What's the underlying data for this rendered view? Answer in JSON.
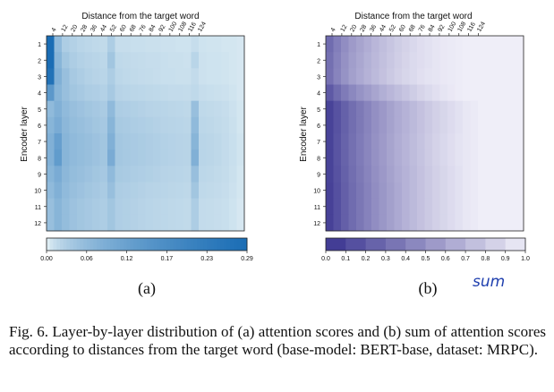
{
  "colors": {
    "blue_low": "#f2fafa",
    "blue_high": "#1a6db5",
    "purple_low": "#efeef8",
    "purple_high": "#3a3490",
    "handwriting": "#1f3fae"
  },
  "panels": {
    "a_label": "(a)",
    "b_label": "(b)",
    "b_annotation": "sum"
  },
  "caption": {
    "text": "Fig. 6.   Layer-by-layer distribution of (a) attention scores and (b) sum of attention scores according to distances from the target word (base-model: BERT-base, dataset: MRPC)."
  },
  "chart_data": [
    {
      "type": "heatmap",
      "title": "Distance from the target word",
      "xlabel": "Distance from the target word",
      "ylabel": "Encoder layer",
      "x_ticks": [
        "4",
        "12",
        "20",
        "28",
        "36",
        "44",
        "52",
        "60",
        "68",
        "76",
        "84",
        "92",
        "100",
        "108",
        "116",
        "124"
      ],
      "y_ticks": [
        "1",
        "2",
        "3",
        "4",
        "5",
        "6",
        "7",
        "8",
        "9",
        "10",
        "11",
        "12"
      ],
      "colorbar": {
        "ticks": [
          "0.00",
          "0.06",
          "0.12",
          "0.17",
          "0.23",
          "0.29"
        ],
        "range": [
          0,
          0.29
        ]
      },
      "values_approx": [
        [
          0.29,
          0.06,
          0.03,
          0.025,
          0.02,
          0.018,
          0.016,
          0.015,
          0.03,
          0.012,
          0.012,
          0.011,
          0.011,
          0.01,
          0.01,
          0.009,
          0.009,
          0.008,
          0.008,
          0.012,
          0.008,
          0.007,
          0.007,
          0.006,
          0.006,
          0.005
        ],
        [
          0.29,
          0.07,
          0.04,
          0.03,
          0.025,
          0.022,
          0.02,
          0.018,
          0.04,
          0.016,
          0.015,
          0.014,
          0.013,
          0.012,
          0.012,
          0.011,
          0.01,
          0.01,
          0.009,
          0.02,
          0.009,
          0.008,
          0.008,
          0.007,
          0.006,
          0.005
        ],
        [
          0.27,
          0.08,
          0.05,
          0.035,
          0.03,
          0.025,
          0.022,
          0.02,
          0.03,
          0.018,
          0.016,
          0.015,
          0.014,
          0.013,
          0.012,
          0.011,
          0.011,
          0.01,
          0.01,
          0.014,
          0.009,
          0.008,
          0.008,
          0.007,
          0.006,
          0.005
        ],
        [
          0.14,
          0.07,
          0.05,
          0.04,
          0.035,
          0.03,
          0.028,
          0.025,
          0.035,
          0.022,
          0.02,
          0.019,
          0.018,
          0.017,
          0.016,
          0.015,
          0.014,
          0.014,
          0.013,
          0.016,
          0.012,
          0.011,
          0.01,
          0.009,
          0.007,
          0.005
        ],
        [
          0.06,
          0.08,
          0.06,
          0.05,
          0.045,
          0.04,
          0.036,
          0.032,
          0.06,
          0.03,
          0.028,
          0.026,
          0.024,
          0.022,
          0.021,
          0.02,
          0.019,
          0.018,
          0.017,
          0.05,
          0.016,
          0.015,
          0.014,
          0.012,
          0.009,
          0.006
        ],
        [
          0.07,
          0.09,
          0.065,
          0.055,
          0.05,
          0.045,
          0.04,
          0.036,
          0.07,
          0.034,
          0.032,
          0.03,
          0.028,
          0.026,
          0.024,
          0.022,
          0.021,
          0.02,
          0.019,
          0.06,
          0.018,
          0.017,
          0.015,
          0.013,
          0.01,
          0.006
        ],
        [
          0.08,
          0.12,
          0.07,
          0.06,
          0.055,
          0.05,
          0.045,
          0.04,
          0.08,
          0.038,
          0.035,
          0.033,
          0.031,
          0.029,
          0.027,
          0.025,
          0.023,
          0.022,
          0.021,
          0.07,
          0.02,
          0.019,
          0.017,
          0.014,
          0.011,
          0.007
        ],
        [
          0.08,
          0.13,
          0.07,
          0.06,
          0.055,
          0.05,
          0.045,
          0.04,
          0.09,
          0.038,
          0.035,
          0.033,
          0.031,
          0.029,
          0.027,
          0.025,
          0.023,
          0.022,
          0.021,
          0.08,
          0.02,
          0.019,
          0.017,
          0.014,
          0.011,
          0.007
        ],
        [
          0.07,
          0.09,
          0.065,
          0.055,
          0.05,
          0.045,
          0.04,
          0.036,
          0.06,
          0.034,
          0.032,
          0.03,
          0.028,
          0.026,
          0.024,
          0.022,
          0.021,
          0.02,
          0.019,
          0.05,
          0.018,
          0.017,
          0.015,
          0.013,
          0.01,
          0.006
        ],
        [
          0.06,
          0.08,
          0.06,
          0.05,
          0.045,
          0.04,
          0.036,
          0.032,
          0.05,
          0.03,
          0.028,
          0.026,
          0.024,
          0.022,
          0.021,
          0.02,
          0.019,
          0.018,
          0.017,
          0.04,
          0.016,
          0.015,
          0.014,
          0.012,
          0.009,
          0.006
        ],
        [
          0.05,
          0.07,
          0.055,
          0.045,
          0.04,
          0.036,
          0.032,
          0.03,
          0.04,
          0.028,
          0.026,
          0.024,
          0.022,
          0.02,
          0.019,
          0.018,
          0.017,
          0.016,
          0.015,
          0.03,
          0.014,
          0.013,
          0.012,
          0.011,
          0.008,
          0.005
        ],
        [
          0.05,
          0.07,
          0.055,
          0.045,
          0.04,
          0.036,
          0.032,
          0.03,
          0.04,
          0.028,
          0.026,
          0.024,
          0.022,
          0.02,
          0.019,
          0.018,
          0.017,
          0.016,
          0.015,
          0.03,
          0.014,
          0.013,
          0.012,
          0.011,
          0.008,
          0.005
        ]
      ]
    },
    {
      "type": "heatmap",
      "title": "Distance from the target word",
      "xlabel": "Distance from the target word",
      "ylabel": "Encoder layer",
      "x_ticks": [
        "4",
        "12",
        "20",
        "28",
        "36",
        "44",
        "52",
        "60",
        "68",
        "76",
        "84",
        "92",
        "100",
        "108",
        "116",
        "124"
      ],
      "y_ticks": [
        "1",
        "2",
        "3",
        "4",
        "5",
        "6",
        "7",
        "8",
        "9",
        "10",
        "11",
        "12"
      ],
      "colorbar": {
        "ticks": [
          "0.0",
          "0.1",
          "0.2",
          "0.3",
          "0.4",
          "0.5",
          "0.6",
          "0.7",
          "0.8",
          "0.9",
          "1.0"
        ],
        "range": [
          0,
          1
        ]
      },
      "values_approx": [
        [
          0.3,
          0.4,
          0.48,
          0.55,
          0.6,
          0.65,
          0.7,
          0.74,
          0.78,
          0.82,
          0.85,
          0.88,
          0.91,
          0.93,
          0.95,
          0.97,
          0.98,
          0.99,
          1.0,
          1.0,
          1.0,
          1.0,
          1.0,
          1.0,
          1.0,
          1.0
        ],
        [
          0.32,
          0.42,
          0.5,
          0.57,
          0.62,
          0.67,
          0.71,
          0.75,
          0.79,
          0.83,
          0.86,
          0.89,
          0.91,
          0.93,
          0.95,
          0.97,
          0.98,
          0.99,
          1.0,
          1.0,
          1.0,
          1.0,
          1.0,
          1.0,
          1.0,
          1.0
        ],
        [
          0.33,
          0.43,
          0.51,
          0.58,
          0.63,
          0.68,
          0.72,
          0.76,
          0.8,
          0.84,
          0.87,
          0.89,
          0.92,
          0.94,
          0.95,
          0.97,
          0.98,
          0.99,
          1.0,
          1.0,
          1.0,
          1.0,
          1.0,
          1.0,
          1.0,
          1.0
        ],
        [
          0.2,
          0.3,
          0.38,
          0.45,
          0.51,
          0.56,
          0.61,
          0.66,
          0.7,
          0.74,
          0.78,
          0.82,
          0.86,
          0.89,
          0.92,
          0.95,
          0.97,
          0.99,
          1.0,
          1.0,
          1.0,
          1.0,
          1.0,
          1.0,
          1.0,
          1.0
        ],
        [
          0.08,
          0.16,
          0.24,
          0.31,
          0.37,
          0.43,
          0.49,
          0.54,
          0.59,
          0.64,
          0.68,
          0.72,
          0.76,
          0.8,
          0.84,
          0.87,
          0.9,
          0.93,
          0.96,
          0.98,
          1.0,
          1.0,
          1.0,
          1.0,
          1.0,
          1.0
        ],
        [
          0.08,
          0.16,
          0.24,
          0.31,
          0.37,
          0.43,
          0.49,
          0.54,
          0.59,
          0.64,
          0.68,
          0.72,
          0.76,
          0.8,
          0.84,
          0.87,
          0.9,
          0.93,
          0.96,
          0.98,
          1.0,
          1.0,
          1.0,
          1.0,
          1.0,
          1.0
        ],
        [
          0.08,
          0.17,
          0.25,
          0.32,
          0.38,
          0.44,
          0.5,
          0.55,
          0.6,
          0.65,
          0.69,
          0.73,
          0.77,
          0.81,
          0.85,
          0.88,
          0.91,
          0.94,
          0.96,
          0.98,
          1.0,
          1.0,
          1.0,
          1.0,
          1.0,
          1.0
        ],
        [
          0.08,
          0.17,
          0.25,
          0.32,
          0.38,
          0.44,
          0.5,
          0.55,
          0.6,
          0.65,
          0.69,
          0.73,
          0.77,
          0.81,
          0.85,
          0.88,
          0.91,
          0.94,
          0.96,
          0.98,
          1.0,
          1.0,
          1.0,
          1.0,
          1.0,
          1.0
        ],
        [
          0.08,
          0.16,
          0.24,
          0.31,
          0.37,
          0.43,
          0.49,
          0.54,
          0.59,
          0.64,
          0.68,
          0.72,
          0.76,
          0.8,
          0.84,
          0.87,
          0.9,
          0.93,
          0.96,
          0.98,
          1.0,
          1.0,
          1.0,
          1.0,
          1.0,
          1.0
        ],
        [
          0.07,
          0.15,
          0.23,
          0.3,
          0.36,
          0.42,
          0.48,
          0.53,
          0.58,
          0.63,
          0.68,
          0.72,
          0.76,
          0.8,
          0.84,
          0.87,
          0.9,
          0.93,
          0.96,
          0.98,
          1.0,
          1.0,
          1.0,
          1.0,
          1.0,
          1.0
        ],
        [
          0.07,
          0.15,
          0.23,
          0.3,
          0.36,
          0.42,
          0.48,
          0.53,
          0.58,
          0.63,
          0.68,
          0.72,
          0.76,
          0.8,
          0.84,
          0.87,
          0.9,
          0.93,
          0.96,
          0.98,
          1.0,
          1.0,
          1.0,
          1.0,
          1.0,
          1.0
        ],
        [
          0.07,
          0.15,
          0.23,
          0.3,
          0.36,
          0.42,
          0.48,
          0.53,
          0.58,
          0.63,
          0.68,
          0.72,
          0.76,
          0.8,
          0.84,
          0.87,
          0.9,
          0.93,
          0.96,
          0.98,
          1.0,
          1.0,
          1.0,
          1.0,
          1.0,
          1.0
        ]
      ]
    }
  ]
}
